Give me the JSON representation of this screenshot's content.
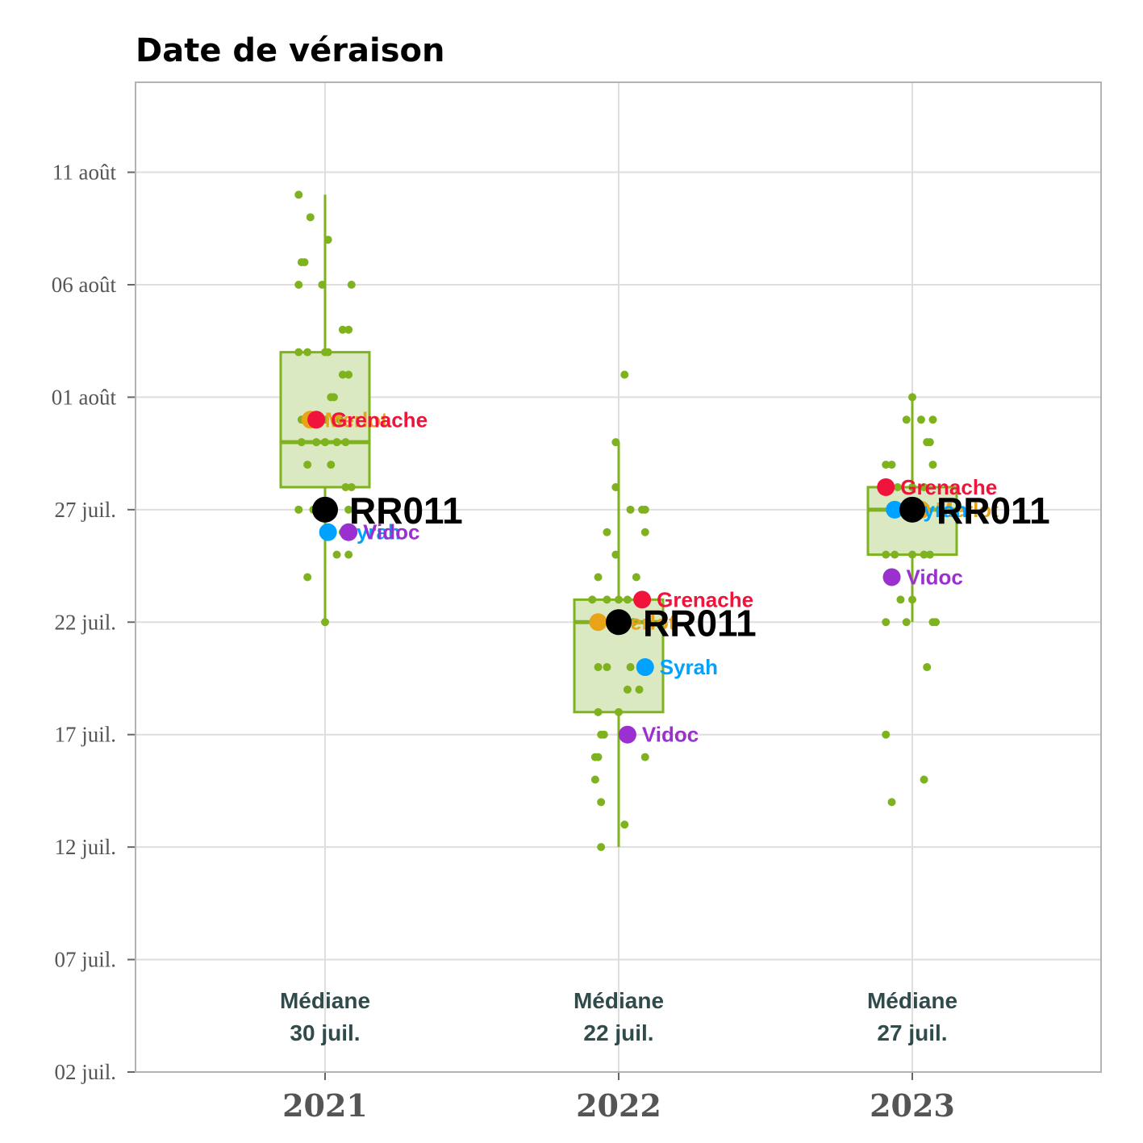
{
  "chart_data": {
    "type": "box",
    "title": "Date de véraison",
    "y_ticks": [
      {
        "date": "2000-07-02",
        "label": "02 juil."
      },
      {
        "date": "2000-07-07",
        "label": "07 juil."
      },
      {
        "date": "2000-07-12",
        "label": "12 juil."
      },
      {
        "date": "2000-07-17",
        "label": "17 juil."
      },
      {
        "date": "2000-07-22",
        "label": "22 juil."
      },
      {
        "date": "2000-07-27",
        "label": "27 juil."
      },
      {
        "date": "2000-08-01",
        "label": "01 août"
      },
      {
        "date": "2000-08-06",
        "label": "06 août"
      },
      {
        "date": "2000-08-11",
        "label": "11 août"
      }
    ],
    "ylim": [
      "2000-07-02",
      "2000-08-15"
    ],
    "grid": true,
    "colors": {
      "box": "#7fb21f",
      "box_fill": "#dbe9c2",
      "RR011": "#000000",
      "Grenache": "#f0143c",
      "Merlot": "#e8a317",
      "Syrah": "#00a2ff",
      "Vidoc": "#9b30d0"
    },
    "years": [
      {
        "label": "2021",
        "median_text": "Médiane",
        "median_date_text": "30 juil.",
        "box": {
          "min": "2000-07-22",
          "q1": "2000-07-28",
          "median": "2000-07-30",
          "q3": "2000-08-03",
          "max": "2000-08-10"
        },
        "jitter": [
          [
            "2000-08-10",
            -0.09
          ],
          [
            "2000-08-09",
            -0.05
          ],
          [
            "2000-08-08",
            0.01
          ],
          [
            "2000-08-07",
            -0.08
          ],
          [
            "2000-08-07",
            -0.07
          ],
          [
            "2000-08-06",
            -0.09
          ],
          [
            "2000-08-06",
            -0.01
          ],
          [
            "2000-08-06",
            0.09
          ],
          [
            "2000-08-04",
            0.06
          ],
          [
            "2000-08-04",
            0.08
          ],
          [
            "2000-08-03",
            -0.09
          ],
          [
            "2000-08-03",
            -0.06
          ],
          [
            "2000-08-03",
            0.0
          ],
          [
            "2000-08-03",
            0.01
          ],
          [
            "2000-08-02",
            0.06
          ],
          [
            "2000-08-02",
            0.08
          ],
          [
            "2000-08-01",
            0.02
          ],
          [
            "2000-08-01",
            0.03
          ],
          [
            "2000-07-31",
            -0.08
          ],
          [
            "2000-07-31",
            0.0
          ],
          [
            "2000-07-31",
            0.05
          ],
          [
            "2000-07-30",
            -0.08
          ],
          [
            "2000-07-30",
            -0.03
          ],
          [
            "2000-07-30",
            0.0
          ],
          [
            "2000-07-30",
            0.04
          ],
          [
            "2000-07-30",
            0.07
          ],
          [
            "2000-07-29",
            -0.06
          ],
          [
            "2000-07-29",
            0.02
          ],
          [
            "2000-07-28",
            0.07
          ],
          [
            "2000-07-28",
            0.09
          ],
          [
            "2000-07-27",
            -0.09
          ],
          [
            "2000-07-27",
            -0.04
          ],
          [
            "2000-07-27",
            0.0
          ],
          [
            "2000-07-27",
            0.03
          ],
          [
            "2000-07-27",
            0.08
          ],
          [
            "2000-07-26",
            0.06
          ],
          [
            "2000-07-25",
            0.04
          ],
          [
            "2000-07-25",
            0.08
          ],
          [
            "2000-07-24",
            -0.06
          ],
          [
            "2000-07-22",
            0.0
          ]
        ],
        "varieties": [
          {
            "name": "Merlot",
            "date": "2000-07-31",
            "dx": -0.05,
            "label": "Merlot",
            "color": "#e8a317"
          },
          {
            "name": "Grenache",
            "date": "2000-07-31",
            "dx": -0.03,
            "label": "Grenache",
            "color": "#f0143c"
          },
          {
            "name": "Syrah",
            "date": "2000-07-26",
            "dx": 0.01,
            "label": "Syrah",
            "color": "#00a2ff"
          },
          {
            "name": "Vidoc",
            "date": "2000-07-26",
            "dx": 0.08,
            "label": "Vidoc",
            "color": "#9b30d0"
          },
          {
            "name": "RR011",
            "date": "2000-07-27",
            "dx": 0.0,
            "label": "RR011",
            "color": "#000000"
          }
        ]
      },
      {
        "label": "2022",
        "median_text": "Médiane",
        "median_date_text": "22 juil.",
        "box": {
          "min": "2000-07-12",
          "q1": "2000-07-18",
          "median": "2000-07-22",
          "q3": "2000-07-23",
          "max": "2000-07-30"
        },
        "jitter": [
          [
            "2000-08-02",
            0.02
          ],
          [
            "2000-07-30",
            -0.01
          ],
          [
            "2000-07-28",
            -0.01
          ],
          [
            "2000-07-27",
            0.04
          ],
          [
            "2000-07-27",
            0.08
          ],
          [
            "2000-07-27",
            0.09
          ],
          [
            "2000-07-26",
            -0.04
          ],
          [
            "2000-07-26",
            0.09
          ],
          [
            "2000-07-25",
            -0.01
          ],
          [
            "2000-07-24",
            -0.07
          ],
          [
            "2000-07-24",
            0.06
          ],
          [
            "2000-07-23",
            -0.09
          ],
          [
            "2000-07-23",
            -0.04
          ],
          [
            "2000-07-23",
            0.0
          ],
          [
            "2000-07-23",
            0.03
          ],
          [
            "2000-07-22",
            -0.03
          ],
          [
            "2000-07-22",
            0.05
          ],
          [
            "2000-07-20",
            -0.07
          ],
          [
            "2000-07-20",
            -0.04
          ],
          [
            "2000-07-20",
            0.04
          ],
          [
            "2000-07-19",
            0.03
          ],
          [
            "2000-07-19",
            0.07
          ],
          [
            "2000-07-18",
            -0.07
          ],
          [
            "2000-07-18",
            0.0
          ],
          [
            "2000-07-17",
            -0.06
          ],
          [
            "2000-07-17",
            -0.05
          ],
          [
            "2000-07-16",
            -0.08
          ],
          [
            "2000-07-16",
            -0.07
          ],
          [
            "2000-07-16",
            0.09
          ],
          [
            "2000-07-15",
            -0.08
          ],
          [
            "2000-07-14",
            -0.06
          ],
          [
            "2000-07-13",
            0.02
          ],
          [
            "2000-07-12",
            -0.06
          ]
        ],
        "varieties": [
          {
            "name": "Merlot",
            "date": "2000-07-22",
            "dx": -0.07,
            "label": "Merlot",
            "color": "#e8a317"
          },
          {
            "name": "Grenache",
            "date": "2000-07-23",
            "dx": 0.08,
            "label": "Grenache",
            "color": "#f0143c"
          },
          {
            "name": "Syrah",
            "date": "2000-07-20",
            "dx": 0.09,
            "label": "Syrah",
            "color": "#00a2ff"
          },
          {
            "name": "Vidoc",
            "date": "2000-07-17",
            "dx": 0.03,
            "label": "Vidoc",
            "color": "#9b30d0"
          },
          {
            "name": "RR011",
            "date": "2000-07-22",
            "dx": 0.0,
            "label": "RR011",
            "color": "#000000"
          }
        ]
      },
      {
        "label": "2023",
        "median_text": "Médiane",
        "median_date_text": "27 juil.",
        "box": {
          "min": "2000-07-22",
          "q1": "2000-07-25",
          "median": "2000-07-27",
          "q3": "2000-07-28",
          "max": "2000-08-01"
        },
        "jitter": [
          [
            "2000-08-01",
            0.0
          ],
          [
            "2000-07-31",
            -0.02
          ],
          [
            "2000-07-31",
            0.03
          ],
          [
            "2000-07-31",
            0.07
          ],
          [
            "2000-07-30",
            0.05
          ],
          [
            "2000-07-30",
            0.06
          ],
          [
            "2000-07-29",
            -0.09
          ],
          [
            "2000-07-29",
            -0.07
          ],
          [
            "2000-07-29",
            0.07
          ],
          [
            "2000-07-28",
            -0.05
          ],
          [
            "2000-07-28",
            0.0
          ],
          [
            "2000-07-28",
            0.04
          ],
          [
            "2000-07-27",
            0.0
          ],
          [
            "2000-07-27",
            0.02
          ],
          [
            "2000-07-25",
            -0.09
          ],
          [
            "2000-07-25",
            -0.06
          ],
          [
            "2000-07-25",
            0.0
          ],
          [
            "2000-07-25",
            0.04
          ],
          [
            "2000-07-25",
            0.06
          ],
          [
            "2000-07-23",
            -0.04
          ],
          [
            "2000-07-23",
            0.0
          ],
          [
            "2000-07-22",
            -0.09
          ],
          [
            "2000-07-22",
            -0.02
          ],
          [
            "2000-07-22",
            0.07
          ],
          [
            "2000-07-22",
            0.08
          ],
          [
            "2000-07-20",
            0.05
          ],
          [
            "2000-07-17",
            -0.09
          ],
          [
            "2000-07-15",
            0.04
          ],
          [
            "2000-07-14",
            -0.07
          ]
        ],
        "varieties": [
          {
            "name": "Merlot",
            "date": "2000-07-27",
            "dx": 0.03,
            "label": "Merlot",
            "color": "#e8a317"
          },
          {
            "name": "Grenache",
            "date": "2000-07-28",
            "dx": -0.09,
            "label": "Grenache",
            "color": "#f0143c"
          },
          {
            "name": "Syrah",
            "date": "2000-07-27",
            "dx": -0.06,
            "label": "Syrah",
            "color": "#00a2ff"
          },
          {
            "name": "Vidoc",
            "date": "2000-07-24",
            "dx": -0.07,
            "label": "Vidoc",
            "color": "#9b30d0"
          },
          {
            "name": "RR011",
            "date": "2000-07-27",
            "dx": 0.0,
            "label": "RR011",
            "color": "#000000"
          }
        ]
      }
    ]
  }
}
